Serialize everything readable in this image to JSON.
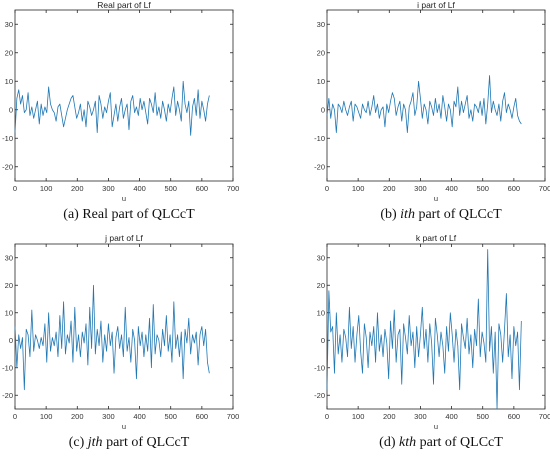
{
  "colors": {
    "line": "#1f77b4",
    "axis": "#262626",
    "background": "#ffffff"
  },
  "chart_data": [
    {
      "type": "line",
      "title": "Real part of Lf",
      "xlabel": "u",
      "caption": {
        "prefix": "(a) ",
        "italic": "",
        "text": "Real part of QLCcT"
      },
      "xlim": [
        0,
        700
      ],
      "ylim": [
        -25,
        35
      ],
      "xticks": [
        "0",
        "100",
        "200",
        "300",
        "400",
        "500",
        "600",
        "700"
      ],
      "yticks": [
        "-20",
        "-10",
        "0",
        "10",
        "20",
        "30"
      ],
      "series": [
        {
          "x": [
            0,
            6,
            12,
            18,
            24,
            30,
            36,
            42,
            48,
            54,
            60,
            66,
            72,
            78,
            84,
            90,
            96,
            102,
            108,
            114,
            120,
            126,
            132,
            138,
            144,
            150,
            156,
            162,
            168,
            174,
            180,
            186,
            192,
            198,
            204,
            210,
            216,
            222,
            228,
            234,
            240,
            246,
            252,
            258,
            264,
            270,
            276,
            282,
            288,
            294,
            300,
            306,
            312,
            318,
            324,
            330,
            336,
            342,
            348,
            354,
            360,
            366,
            372,
            378,
            384,
            390,
            396,
            402,
            408,
            414,
            420,
            426,
            432,
            438,
            444,
            450,
            456,
            462,
            468,
            474,
            480,
            486,
            492,
            498,
            504,
            510,
            516,
            522,
            528,
            534,
            540,
            546,
            552,
            558,
            564,
            570,
            576,
            582,
            588,
            594,
            600,
            606,
            612,
            618,
            624
          ],
          "y": [
            -8,
            4,
            7,
            2,
            5,
            -1,
            0,
            6,
            -2,
            1,
            -3,
            0,
            3,
            -5,
            2,
            -2,
            1,
            -1,
            8,
            2,
            0,
            -1,
            -4,
            1,
            2,
            -2,
            -6,
            -3,
            0,
            2,
            4,
            5,
            1,
            -3,
            -1,
            2,
            -4,
            0,
            -6,
            3,
            1,
            -2,
            0,
            3,
            -8,
            5,
            2,
            -3,
            1,
            -1,
            3,
            6,
            -6,
            -2,
            2,
            -4,
            1,
            4,
            -3,
            0,
            2,
            -7,
            3,
            5,
            -1,
            1,
            -2,
            4,
            0,
            3,
            -1,
            -5,
            4,
            2,
            -1,
            6,
            -2,
            1,
            -3,
            3,
            0,
            -4,
            2,
            -1,
            4,
            8,
            -2,
            3,
            0,
            -4,
            10,
            2,
            -1,
            3,
            -9,
            1,
            4,
            -2,
            7,
            -3,
            3,
            0,
            -4,
            2,
            5
          ]
        }
      ]
    },
    {
      "type": "line",
      "title": "i part of Lf",
      "xlabel": "u",
      "caption": {
        "prefix": "(b) ",
        "italic": "ith",
        "text": " part of QLCcT"
      },
      "xlim": [
        0,
        700
      ],
      "ylim": [
        -25,
        35
      ],
      "xticks": [
        "0",
        "100",
        "200",
        "300",
        "400",
        "500",
        "600",
        "700"
      ],
      "yticks": [
        "-20",
        "-10",
        "0",
        "10",
        "20",
        "30"
      ],
      "series": [
        {
          "x": [
            0,
            6,
            12,
            18,
            24,
            30,
            36,
            42,
            48,
            54,
            60,
            66,
            72,
            78,
            84,
            90,
            96,
            102,
            108,
            114,
            120,
            126,
            132,
            138,
            144,
            150,
            156,
            162,
            168,
            174,
            180,
            186,
            192,
            198,
            204,
            210,
            216,
            222,
            228,
            234,
            240,
            246,
            252,
            258,
            264,
            270,
            276,
            282,
            288,
            294,
            300,
            306,
            312,
            318,
            324,
            330,
            336,
            342,
            348,
            354,
            360,
            366,
            372,
            378,
            384,
            390,
            396,
            402,
            408,
            414,
            420,
            426,
            432,
            438,
            444,
            450,
            456,
            462,
            468,
            474,
            480,
            486,
            492,
            498,
            504,
            510,
            516,
            522,
            528,
            534,
            540,
            546,
            552,
            558,
            564,
            570,
            576,
            582,
            588,
            594,
            600,
            606,
            612,
            618,
            624
          ],
          "y": [
            -2,
            4,
            -3,
            2,
            0,
            -8,
            2,
            1,
            -1,
            3,
            0,
            -2,
            1,
            3,
            -4,
            2,
            1,
            -1,
            -3,
            2,
            0,
            -1,
            3,
            -2,
            1,
            5,
            -1,
            2,
            -3,
            0,
            1,
            -6,
            2,
            -1,
            3,
            6,
            4,
            -2,
            1,
            3,
            -4,
            2,
            0,
            -8,
            1,
            3,
            6,
            -2,
            1,
            10,
            4,
            -3,
            2,
            0,
            -5,
            3,
            1,
            -2,
            4,
            -1,
            2,
            -3,
            5,
            1,
            -4,
            2,
            0,
            -6,
            3,
            1,
            8,
            -2,
            3,
            -1,
            2,
            5,
            -3,
            0,
            -4,
            2,
            1,
            -1,
            3,
            -2,
            4,
            -5,
            2,
            12,
            -1,
            3,
            0,
            -2,
            2,
            -4,
            3,
            6,
            -1,
            2,
            0,
            -3,
            1,
            4,
            -2,
            -4,
            -5
          ]
        }
      ]
    },
    {
      "type": "line",
      "title": "j part of Lf",
      "xlabel": "u",
      "caption": {
        "prefix": "(c) ",
        "italic": "jth",
        "text": " part of QLCcT"
      },
      "xlim": [
        0,
        700
      ],
      "ylim": [
        -25,
        35
      ],
      "xticks": [
        "0",
        "100",
        "200",
        "300",
        "400",
        "500",
        "600",
        "700"
      ],
      "yticks": [
        "-20",
        "-10",
        "0",
        "10",
        "20",
        "30"
      ],
      "series": [
        {
          "x": [
            0,
            6,
            12,
            18,
            24,
            30,
            36,
            42,
            48,
            54,
            60,
            66,
            72,
            78,
            84,
            90,
            96,
            102,
            108,
            114,
            120,
            126,
            132,
            138,
            144,
            150,
            156,
            162,
            168,
            174,
            180,
            186,
            192,
            198,
            204,
            210,
            216,
            222,
            228,
            234,
            240,
            246,
            252,
            258,
            264,
            270,
            276,
            282,
            288,
            294,
            300,
            306,
            312,
            318,
            324,
            330,
            336,
            342,
            348,
            354,
            360,
            366,
            372,
            378,
            384,
            390,
            396,
            402,
            408,
            414,
            420,
            426,
            432,
            438,
            444,
            450,
            456,
            462,
            468,
            474,
            480,
            486,
            492,
            498,
            504,
            510,
            516,
            522,
            528,
            534,
            540,
            546,
            552,
            558,
            564,
            570,
            576,
            582,
            588,
            594,
            600,
            606,
            612,
            618,
            624
          ],
          "y": [
            5,
            -10,
            2,
            -3,
            1,
            -18,
            4,
            2,
            -6,
            11,
            -4,
            2,
            0,
            -3,
            1,
            -2,
            6,
            -8,
            10,
            -4,
            1,
            -2,
            3,
            -6,
            9,
            -3,
            14,
            -5,
            2,
            -1,
            7,
            -8,
            12,
            -4,
            2,
            -6,
            3,
            -1,
            6,
            -9,
            12,
            -3,
            20,
            -5,
            4,
            -2,
            7,
            -8,
            2,
            -4,
            6,
            -2,
            3,
            -12,
            1,
            5,
            -3,
            2,
            -6,
            12,
            -4,
            1,
            -8,
            4,
            0,
            -14,
            5,
            -2,
            3,
            -6,
            2,
            -4,
            8,
            -10,
            13,
            -5,
            2,
            0,
            -6,
            4,
            -2,
            9,
            -4,
            2,
            -8,
            14,
            -3,
            2,
            -6,
            3,
            -14,
            4,
            -1,
            8,
            -5,
            2,
            -1,
            3,
            -9,
            2,
            5,
            -2,
            4,
            -8,
            -12
          ]
        }
      ]
    },
    {
      "type": "line",
      "title": "k part of Lf",
      "xlabel": "u",
      "caption": {
        "prefix": "(d) ",
        "italic": "kth",
        "text": " part of QLCcT"
      },
      "xlim": [
        0,
        700
      ],
      "ylim": [
        -25,
        35
      ],
      "xticks": [
        "0",
        "100",
        "200",
        "300",
        "400",
        "500",
        "600",
        "700"
      ],
      "yticks": [
        "-20",
        "-10",
        "0",
        "10",
        "20",
        "30"
      ],
      "series": [
        {
          "x": [
            0,
            6,
            12,
            18,
            24,
            30,
            36,
            42,
            48,
            54,
            60,
            66,
            72,
            78,
            84,
            90,
            96,
            102,
            108,
            114,
            120,
            126,
            132,
            138,
            144,
            150,
            156,
            162,
            168,
            174,
            180,
            186,
            192,
            198,
            204,
            210,
            216,
            222,
            228,
            234,
            240,
            246,
            252,
            258,
            264,
            270,
            276,
            282,
            288,
            294,
            300,
            306,
            312,
            318,
            324,
            330,
            336,
            342,
            348,
            354,
            360,
            366,
            372,
            378,
            384,
            390,
            396,
            402,
            408,
            414,
            420,
            426,
            432,
            438,
            444,
            450,
            456,
            462,
            468,
            474,
            480,
            486,
            492,
            498,
            504,
            510,
            516,
            522,
            528,
            534,
            540,
            546,
            552,
            558,
            564,
            570,
            576,
            582,
            588,
            594,
            600,
            606,
            612,
            618,
            624
          ],
          "y": [
            -18,
            18,
            3,
            5,
            -12,
            10,
            -5,
            2,
            -8,
            4,
            1,
            -6,
            12,
            -3,
            5,
            -8,
            2,
            9,
            -4,
            -12,
            6,
            1,
            -10,
            3,
            -2,
            5,
            -8,
            10,
            -4,
            2,
            -6,
            4,
            -1,
            -14,
            7,
            -3,
            11,
            -8,
            2,
            4,
            -16,
            6,
            1,
            -5,
            9,
            -2,
            3,
            -10,
            5,
            -6,
            2,
            12,
            -3,
            4,
            -8,
            6,
            -1,
            -16,
            8,
            2,
            -6,
            3,
            -2,
            -12,
            5,
            -4,
            10,
            2,
            -8,
            4,
            -2,
            -18,
            6,
            1,
            -3,
            8,
            -5,
            2,
            -10,
            4,
            -2,
            15,
            -6,
            3,
            -1,
            -8,
            33,
            -4,
            5,
            -12,
            3,
            -25,
            6,
            2,
            -8,
            4,
            17,
            -6,
            2,
            -14,
            5,
            -2,
            3,
            -18,
            7
          ]
        }
      ]
    }
  ]
}
